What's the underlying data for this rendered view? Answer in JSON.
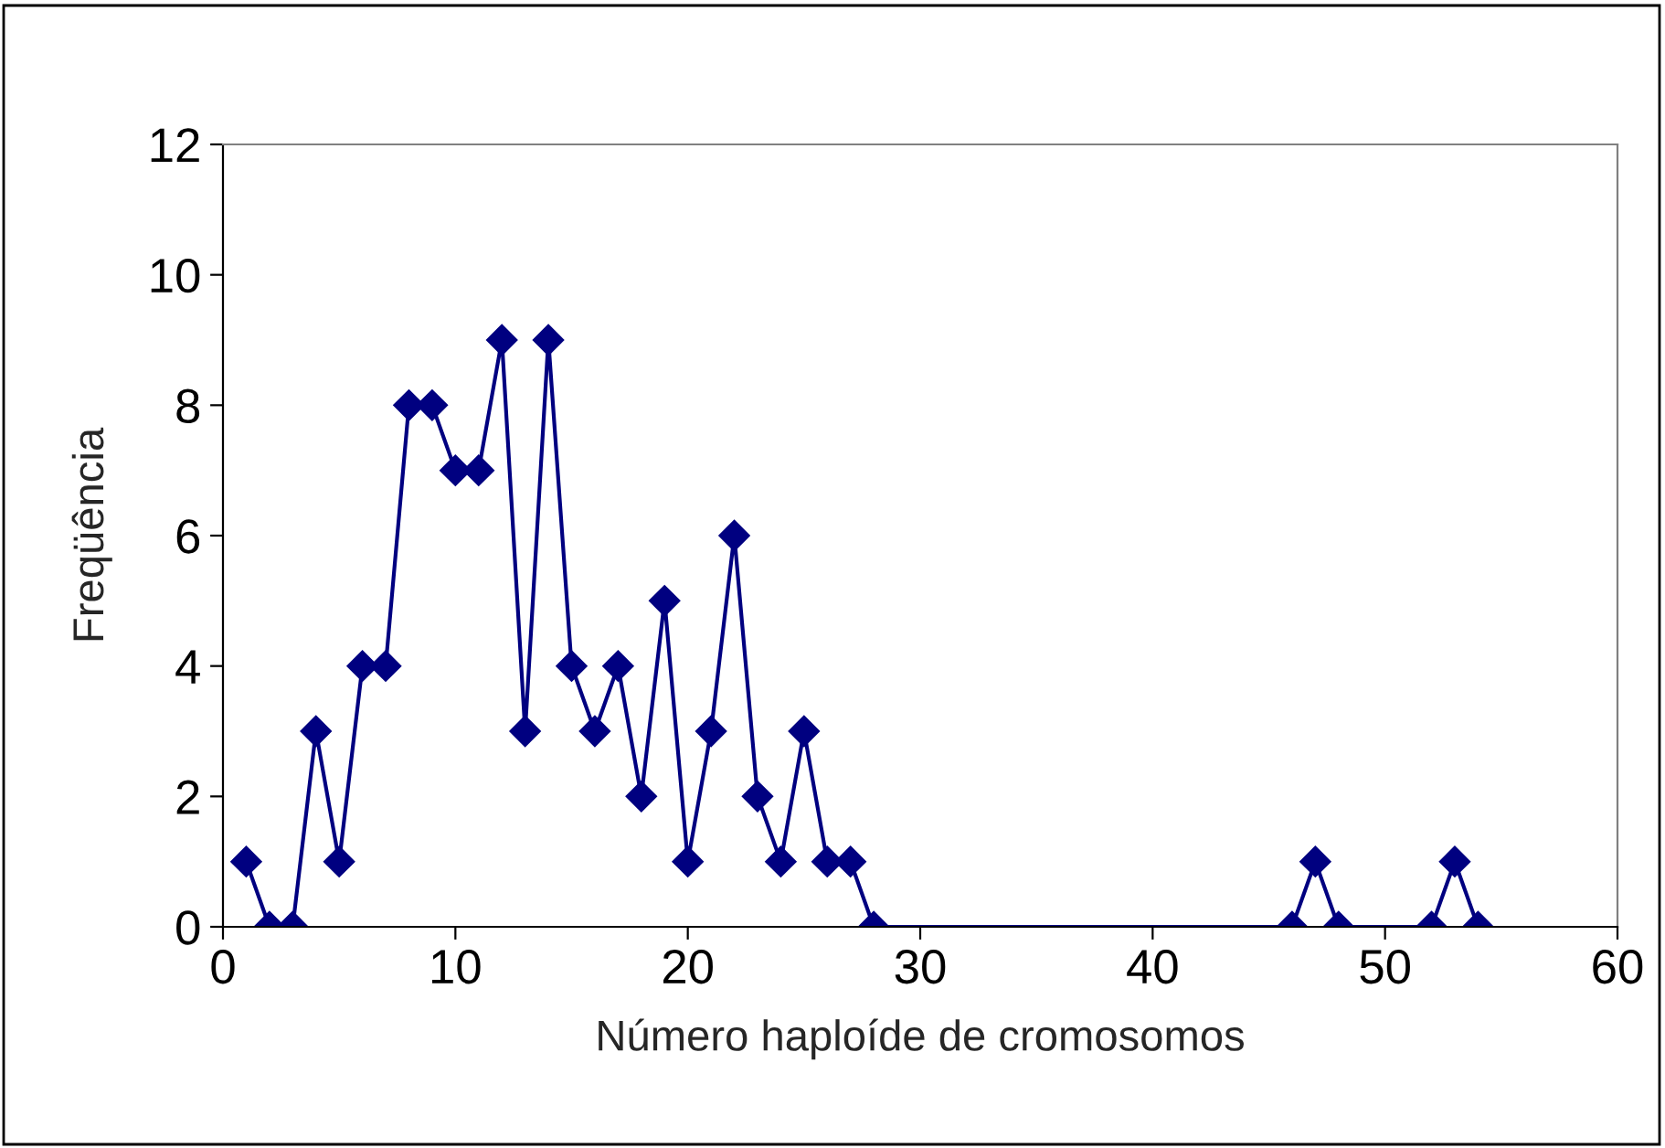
{
  "chart_data": {
    "type": "line",
    "xlabel": "Número haploíde de cromosomos",
    "ylabel": "Freqüência",
    "x": [
      1,
      2,
      3,
      4,
      5,
      6,
      7,
      8,
      9,
      10,
      11,
      12,
      13,
      14,
      15,
      16,
      17,
      18,
      19,
      20,
      21,
      22,
      23,
      24,
      25,
      26,
      27,
      28,
      46,
      47,
      48,
      52,
      53,
      54
    ],
    "series": [
      {
        "color": "#000080",
        "values": [
          1,
          0,
          0,
          3,
          1,
          4,
          4,
          8,
          8,
          7,
          7,
          9,
          3,
          9,
          4,
          3,
          4,
          2,
          5,
          1,
          3,
          6,
          2,
          1,
          3,
          1,
          1,
          0,
          0,
          1,
          0,
          0,
          1,
          0
        ]
      }
    ],
    "xlim": [
      0,
      60
    ],
    "xticks": [
      0,
      10,
      20,
      30,
      40,
      50,
      60
    ],
    "ylim": [
      0,
      12
    ],
    "yticks": [
      0,
      2,
      4,
      6,
      8,
      10,
      12
    ],
    "grid": false,
    "legend": false,
    "marker": "diamond",
    "line_style": "solid"
  }
}
